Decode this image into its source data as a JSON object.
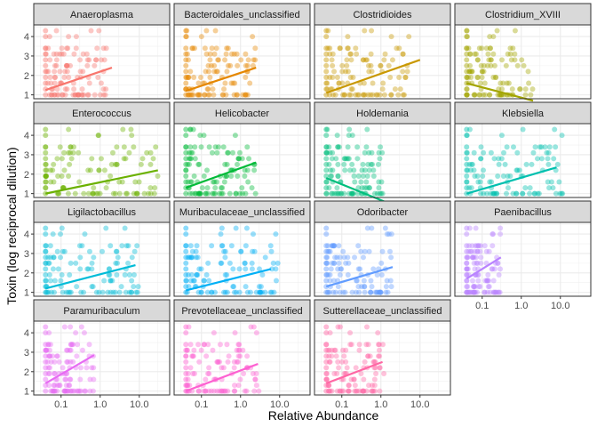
{
  "chart_data": {
    "type": "scatter",
    "facet_layout": "wrap",
    "ncol": 4,
    "xlabel": "Relative Abundance",
    "ylabel": "Toxin (log reciprocal dilution)",
    "x_scale": "log10",
    "xlim": [
      0.02,
      60
    ],
    "ylim": [
      0.8,
      4.6
    ],
    "x_ticks": [
      0.1,
      1,
      10
    ],
    "x_tick_labels": [
      "0.1",
      "1.0",
      "10.0"
    ],
    "y_ticks": [
      1,
      2,
      3,
      4
    ],
    "y_tick_labels": [
      "1",
      "2",
      "3",
      "4"
    ],
    "grid": true,
    "point_levels": [
      1.0,
      1.3,
      1.6,
      1.9,
      2.2,
      2.5,
      2.8,
      3.1,
      3.4,
      4.0,
      4.3
    ],
    "panels": [
      {
        "name": "Anaeroplasma",
        "color": "#F8766D",
        "x_max": 1.5,
        "trend": [
          [
            0.04,
            1.25
          ],
          [
            2.0,
            2.4
          ]
        ]
      },
      {
        "name": "Bacteroidales_unclassified",
        "color": "#E58700",
        "x_max": 2.5,
        "trend": [
          [
            0.04,
            1.2
          ],
          [
            2.5,
            2.4
          ]
        ]
      },
      {
        "name": "Clostridioides",
        "color": "#C99800",
        "x_max": 6.0,
        "trend": [
          [
            0.04,
            1.1
          ],
          [
            10.0,
            2.8
          ]
        ]
      },
      {
        "name": "Clostridium_XVIII",
        "color": "#A3A500",
        "x_max": 2.0,
        "trend": [
          [
            0.04,
            1.6
          ],
          [
            2.0,
            0.7
          ]
        ]
      },
      {
        "name": "Enterococcus",
        "color": "#6BB100",
        "x_max": 30.0,
        "trend": [
          [
            0.04,
            1.0
          ],
          [
            30.0,
            2.2
          ]
        ]
      },
      {
        "name": "Helicobacter",
        "color": "#00BA38",
        "x_max": 2.5,
        "trend": [
          [
            0.04,
            1.3
          ],
          [
            2.5,
            2.6
          ]
        ]
      },
      {
        "name": "Holdemania",
        "color": "#00BF7D",
        "x_max": 1.2,
        "trend": [
          [
            0.04,
            1.8
          ],
          [
            1.2,
            0.6
          ]
        ]
      },
      {
        "name": "Klebsiella",
        "color": "#00C0AF",
        "x_max": 12.0,
        "trend": [
          [
            0.04,
            1.0
          ],
          [
            8.0,
            2.35
          ]
        ]
      },
      {
        "name": "Ligilactobacillus",
        "color": "#00BCD8",
        "x_max": 10.0,
        "trend": [
          [
            0.04,
            1.2
          ],
          [
            8.0,
            2.4
          ]
        ]
      },
      {
        "name": "Muribaculaceae_unclassified",
        "color": "#00B0F6",
        "x_max": 10.0,
        "trend": [
          [
            0.04,
            1.1
          ],
          [
            6.0,
            2.2
          ]
        ]
      },
      {
        "name": "Odoribacter",
        "color": "#619CFF",
        "x_max": 2.0,
        "trend": [
          [
            0.04,
            1.3
          ],
          [
            2.0,
            2.3
          ]
        ]
      },
      {
        "name": "Paenibacillus",
        "color": "#B983FF",
        "x_max": 0.3,
        "trend": [
          [
            0.04,
            1.7
          ],
          [
            0.3,
            2.8
          ]
        ]
      },
      {
        "name": "Paramuribaculum",
        "color": "#E76BF3",
        "x_max": 0.7,
        "trend": [
          [
            0.04,
            1.4
          ],
          [
            0.7,
            2.85
          ]
        ]
      },
      {
        "name": "Prevotellaceae_unclassified",
        "color": "#FD61D1",
        "x_max": 3.0,
        "trend": [
          [
            0.04,
            1.0
          ],
          [
            2.8,
            2.4
          ]
        ]
      },
      {
        "name": "Sutterellaceae_unclassified",
        "color": "#FF67A4",
        "x_max": 1.2,
        "trend": [
          [
            0.04,
            1.4
          ],
          [
            1.1,
            2.5
          ]
        ]
      }
    ]
  }
}
